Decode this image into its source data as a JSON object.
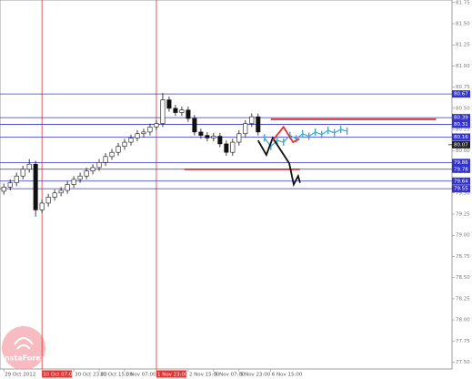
{
  "chart_data": {
    "type": "candlestick",
    "watermark": "InstaForex",
    "ylim": [
      77.42,
      81.78
    ],
    "yticks": [
      {
        "value": 77.5,
        "label": "77.50"
      },
      {
        "value": 77.75,
        "label": "77.75"
      },
      {
        "value": 78,
        "label": "78.00"
      },
      {
        "value": 78.25,
        "label": "78.25"
      },
      {
        "value": 78.5,
        "label": "78.50"
      },
      {
        "value": 78.75,
        "label": "78.75"
      },
      {
        "value": 79,
        "label": "79.00"
      },
      {
        "value": 79.25,
        "label": "79.25"
      },
      {
        "value": 79.5,
        "label": "79.50"
      },
      {
        "value": 79.75,
        "label": "79.75"
      },
      {
        "value": 80,
        "label": "80.00"
      },
      {
        "value": 80.25,
        "label": "80.25"
      },
      {
        "value": 80.5,
        "label": "80.50"
      },
      {
        "value": 80.75,
        "label": "80.75"
      },
      {
        "value": 81,
        "label": "81.00"
      },
      {
        "value": 81.25,
        "label": "81.25"
      },
      {
        "value": 81.5,
        "label": "81.50"
      },
      {
        "value": 81.75,
        "label": "81.75"
      }
    ],
    "xlim": [
      -0.6,
      70.5
    ],
    "xticks": [
      {
        "value": 0,
        "label": "29 Oct 2012"
      },
      {
        "value": 6,
        "label": "30 Oct 07:00"
      },
      {
        "value": 11,
        "label": "30 Oct 23:00"
      },
      {
        "value": 15,
        "label": "31 Oct 15:00"
      },
      {
        "value": 19,
        "label": "1 Nov 07:00"
      },
      {
        "value": 24,
        "label": "1 Nov 23:00"
      },
      {
        "value": 29,
        "label": "2 Nov 15:00"
      },
      {
        "value": 33,
        "label": "5 Nov 07:00"
      },
      {
        "value": 37,
        "label": "5 Nov 23:00"
      },
      {
        "value": 42,
        "label": "6 Nov 15:00"
      }
    ],
    "vlines": [
      6,
      24
    ],
    "vline_color": "#e83030",
    "level_color": "#3434c8",
    "levels": [
      80.67,
      80.39,
      80.31,
      80.16,
      79.86,
      79.78,
      79.64,
      79.55
    ],
    "current_price": 80.07,
    "open": [
      79.52,
      79.57,
      79.62,
      79.7,
      79.78,
      79.84,
      79.3,
      79.38,
      79.45,
      79.5,
      79.53,
      79.6,
      79.66,
      79.7,
      79.76,
      79.8,
      79.86,
      79.93,
      79.98,
      80.05,
      80.1,
      80.15,
      80.2,
      80.22,
      80.28,
      80.32,
      80.6,
      80.5,
      80.45,
      80.48,
      80.38,
      80.22,
      80.18,
      80.15,
      80.17,
      80.08,
      79.98,
      80.1,
      80.2,
      80.32,
      80.4
    ],
    "high": [
      79.61,
      79.66,
      79.74,
      79.82,
      79.9,
      79.88,
      79.42,
      79.49,
      79.54,
      79.57,
      79.64,
      79.7,
      79.74,
      79.8,
      79.84,
      79.9,
      79.97,
      80.02,
      80.09,
      80.14,
      80.19,
      80.24,
      80.26,
      80.32,
      80.36,
      80.68,
      80.64,
      80.54,
      80.52,
      80.52,
      80.42,
      80.26,
      80.22,
      80.21,
      80.21,
      80.12,
      80.14,
      80.24,
      80.36,
      80.44,
      80.44
    ],
    "low": [
      79.48,
      79.53,
      79.58,
      79.66,
      79.74,
      79.22,
      79.26,
      79.34,
      79.41,
      79.46,
      79.49,
      79.56,
      79.62,
      79.66,
      79.72,
      79.76,
      79.82,
      79.89,
      79.94,
      80.01,
      80.06,
      80.11,
      80.16,
      80.18,
      80.24,
      80.28,
      80.46,
      80.41,
      80.41,
      80.34,
      80.18,
      80.14,
      80.11,
      80.11,
      80.04,
      79.94,
      79.94,
      80.06,
      80.16,
      80.28,
      80.18
    ],
    "close": [
      79.57,
      79.62,
      79.7,
      79.78,
      79.84,
      79.3,
      79.38,
      79.45,
      79.5,
      79.53,
      79.6,
      79.66,
      79.7,
      79.76,
      79.8,
      79.86,
      79.93,
      79.98,
      80.05,
      80.1,
      80.15,
      80.2,
      80.22,
      80.28,
      80.32,
      80.6,
      80.5,
      80.45,
      80.48,
      80.38,
      80.22,
      80.18,
      80.15,
      80.17,
      80.08,
      79.98,
      80.1,
      80.2,
      80.32,
      80.4,
      80.22
    ],
    "forecast": {
      "color": "#3fa9cf",
      "x": [
        41,
        42,
        43,
        44,
        45,
        46,
        47,
        48,
        49,
        50,
        51,
        52,
        53,
        54
      ],
      "values": [
        80.15,
        80.05,
        80.12,
        80.1,
        80.18,
        80.14,
        80.2,
        80.17,
        80.22,
        80.19,
        80.24,
        80.21,
        80.25,
        80.23
      ]
    },
    "paths": [
      {
        "color": "#111111",
        "x": [
          40,
          41.3,
          42.3,
          44.9,
          45.6,
          46.3,
          46.6
        ],
        "values": [
          80.12,
          79.95,
          80.15,
          79.85,
          79.6,
          79.7,
          79.62
        ]
      },
      {
        "color": "#e83030",
        "x": [
          42.3,
          44,
          45.5,
          46.5
        ],
        "values": [
          80.12,
          80.28,
          80.1,
          80.14
        ]
      }
    ],
    "segments": [
      {
        "color": "#d82020",
        "x": [
          42,
          68
        ],
        "value": 80.37
      },
      {
        "color": "#d82020",
        "x": [
          28.4,
          46.6
        ],
        "value": 79.78
      }
    ]
  }
}
